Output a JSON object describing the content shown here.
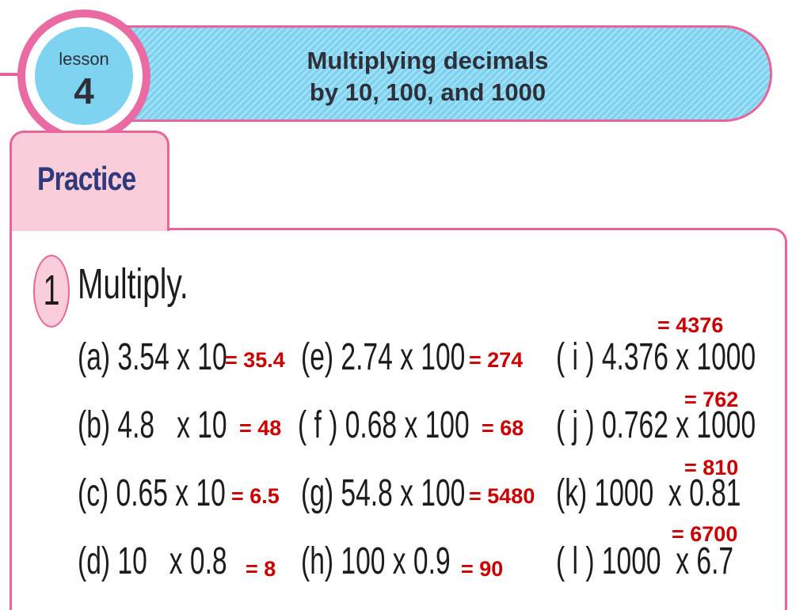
{
  "header": {
    "badge_word": "lesson",
    "badge_number": "4",
    "title_line1": "Multiplying decimals",
    "title_line2": "by 10, 100, and 1000"
  },
  "section": {
    "tab_label": "Practice"
  },
  "exercise": {
    "number": "1",
    "instruction": "Multiply.",
    "problems": [
      {
        "id": "a",
        "text": "(a) 3.54 x 10",
        "answer": "= 35.4"
      },
      {
        "id": "b",
        "text": "(b) 4.8   x 10",
        "answer": "= 48"
      },
      {
        "id": "c",
        "text": "(c) 0.65 x 10",
        "answer": "= 6.5"
      },
      {
        "id": "d",
        "text": "(d) 10   x 0.8",
        "answer": "= 8"
      },
      {
        "id": "e",
        "text": "(e) 2.74 x 100",
        "answer": "= 274"
      },
      {
        "id": "f",
        "text": "( f ) 0.68 x 100",
        "answer": "= 68"
      },
      {
        "id": "g",
        "text": "(g) 54.8 x 100",
        "answer": "= 5480"
      },
      {
        "id": "h",
        "text": "(h) 100 x 0.9",
        "answer": "= 90"
      },
      {
        "id": "i",
        "text": "( i ) 4.376 x 1000",
        "answer": "= 4376"
      },
      {
        "id": "j",
        "text": "( j ) 0.762 x 1000",
        "answer": "= 762"
      },
      {
        "id": "k",
        "text": "(k) 1000  x 0.81",
        "answer": "= 810"
      },
      {
        "id": "l",
        "text": "( l ) 1000  x 6.7",
        "answer": "= 6700"
      }
    ]
  },
  "colors": {
    "accent_pink": "#e8649a",
    "banner_blue": "#7ed3f0",
    "answer_red": "#cc0000",
    "tab_pink": "#f9cdd9"
  }
}
